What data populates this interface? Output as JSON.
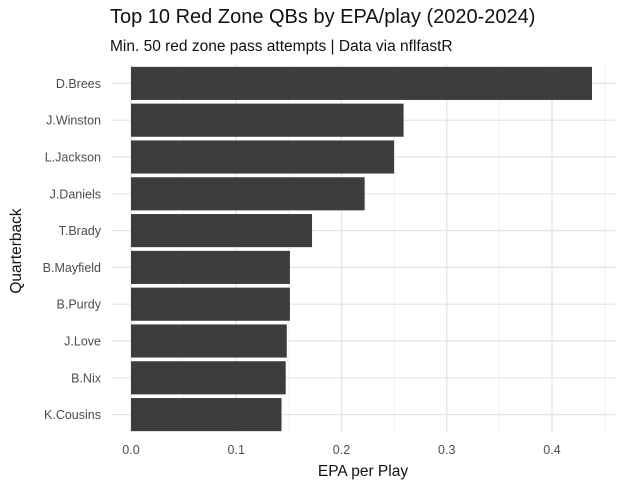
{
  "chart_data": {
    "type": "bar",
    "orientation": "horizontal",
    "title": "Top 10 Red Zone QBs by EPA/play (2020-2024)",
    "subtitle": "Min. 50 red zone pass attempts | Data via nflfastR",
    "xlabel": "EPA per Play",
    "ylabel": "Quarterback",
    "categories": [
      "D.Brees",
      "J.Winston",
      "L.Jackson",
      "J.Daniels",
      "T.Brady",
      "B.Mayfield",
      "B.Purdy",
      "J.Love",
      "B.Nix",
      "K.Cousins"
    ],
    "values": [
      0.438,
      0.259,
      0.25,
      0.222,
      0.172,
      0.151,
      0.151,
      0.148,
      0.147,
      0.143
    ],
    "xlim": [
      0,
      0.45
    ],
    "xticks": [
      "0.0",
      "0.1",
      "0.2",
      "0.3",
      "0.4"
    ],
    "grid": true,
    "bar_color": "#3d3d3d"
  }
}
